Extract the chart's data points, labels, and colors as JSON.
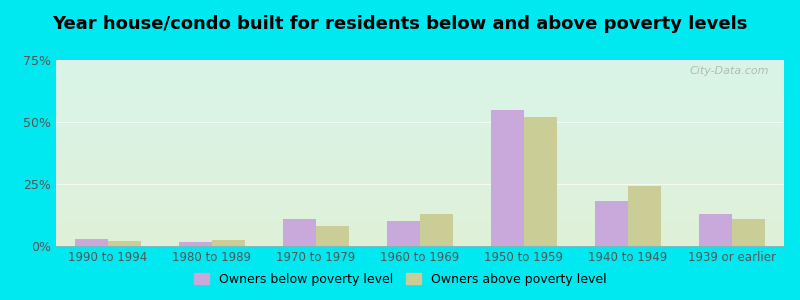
{
  "title": "Year house/condo built for residents below and above poverty levels",
  "categories": [
    "1990 to 1994",
    "1980 to 1989",
    "1970 to 1979",
    "1960 to 1969",
    "1950 to 1959",
    "1940 to 1949",
    "1939 or earlier"
  ],
  "below_poverty": [
    3.0,
    1.5,
    11.0,
    10.0,
    55.0,
    18.0,
    13.0
  ],
  "above_poverty": [
    2.0,
    2.5,
    8.0,
    13.0,
    52.0,
    24.0,
    11.0
  ],
  "below_color": "#c9a8dc",
  "above_color": "#cace96",
  "ylim": [
    0,
    75
  ],
  "yticks": [
    0,
    25,
    50,
    75
  ],
  "ytick_labels": [
    "0%",
    "25%",
    "50%",
    "75%"
  ],
  "legend_below": "Owners below poverty level",
  "legend_above": "Owners above poverty level",
  "bg_color_top": "#d8f4e8",
  "bg_color_bottom": "#dff0d8",
  "outer_bg": "#00e8f0",
  "bar_width": 0.32,
  "title_fontsize": 13,
  "watermark": "City-Data.com",
  "grid_color": "#e8e8e8",
  "tick_color": "#555555",
  "xtick_fontsize": 8.5,
  "ytick_fontsize": 9
}
